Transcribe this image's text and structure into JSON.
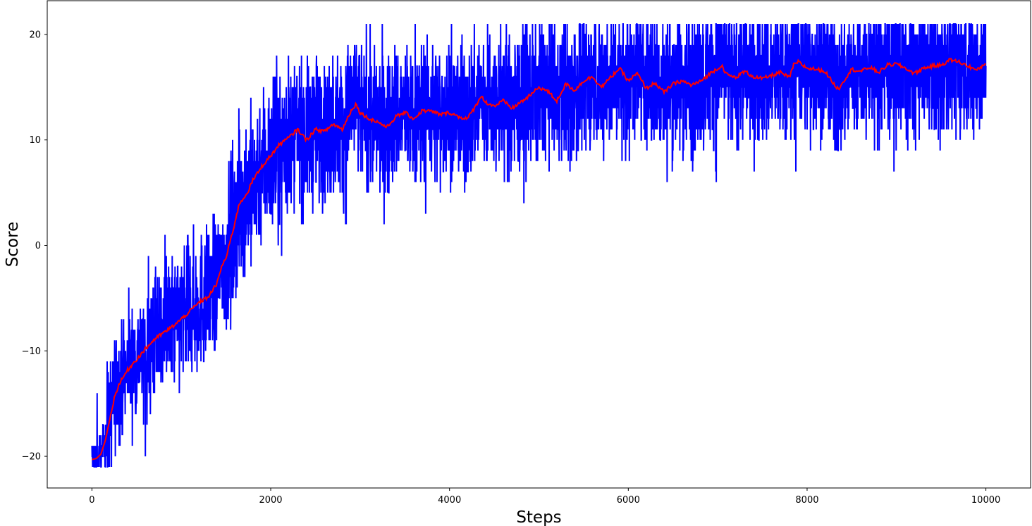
{
  "chart_data": {
    "type": "line",
    "xlabel": "Steps",
    "ylabel": "Score",
    "xlim": [
      -500,
      10500
    ],
    "ylim": [
      -23,
      23.2
    ],
    "xticks": [
      0,
      2000,
      4000,
      6000,
      8000,
      10000
    ],
    "xtick_labels": [
      "0",
      "2000",
      "4000",
      "6000",
      "8000",
      "10000"
    ],
    "yticks": [
      -20,
      -10,
      0,
      10,
      20
    ],
    "ytick_labels": [
      "−20",
      "−10",
      "0",
      "10",
      "20"
    ],
    "grid": false,
    "series": [
      {
        "color": "#0000ff",
        "description": "per-episode score (noisy)",
        "trend_x": [
          0,
          100,
          200,
          300,
          400,
          600,
          800,
          1000,
          1200,
          1400,
          1500,
          1600,
          1700,
          1800,
          1900,
          2000,
          2200,
          2400,
          2600,
          2800,
          2950,
          3100,
          3300,
          3500,
          3700,
          4000,
          4200,
          4350,
          4500,
          4700,
          4900,
          5100,
          5300,
          5500,
          5700,
          5900,
          6100,
          6300,
          6500,
          6700,
          6900,
          7050,
          7200,
          7400,
          7600,
          7850,
          8100,
          8350,
          8600,
          8800,
          9000,
          9200,
          9400,
          9600,
          9800,
          10000
        ],
        "y_min_approx": -21,
        "y_max_approx": 21
      },
      {
        "color": "#ff0000",
        "description": "moving average",
        "x": [
          0,
          50,
          100,
          150,
          200,
          250,
          300,
          400,
          500,
          600,
          700,
          800,
          900,
          1000,
          1100,
          1200,
          1300,
          1400,
          1450,
          1500,
          1550,
          1600,
          1650,
          1700,
          1750,
          1800,
          1850,
          1900,
          1950,
          2000,
          2100,
          2200,
          2300,
          2400,
          2500,
          2600,
          2700,
          2800,
          2900,
          2950,
          3000,
          3100,
          3200,
          3300,
          3400,
          3500,
          3600,
          3700,
          3800,
          3900,
          4000,
          4100,
          4200,
          4300,
          4350,
          4400,
          4500,
          4600,
          4700,
          4800,
          4900,
          5000,
          5100,
          5200,
          5300,
          5400,
          5500,
          5600,
          5700,
          5800,
          5900,
          6000,
          6100,
          6200,
          6300,
          6400,
          6500,
          6600,
          6700,
          6800,
          6900,
          7000,
          7050,
          7100,
          7200,
          7300,
          7400,
          7500,
          7600,
          7700,
          7800,
          7850,
          7900,
          8000,
          8100,
          8200,
          8300,
          8350,
          8400,
          8500,
          8600,
          8700,
          8800,
          8900,
          9000,
          9100,
          9200,
          9300,
          9400,
          9500,
          9600,
          9700,
          9800,
          9900,
          10000
        ],
        "y": [
          -20.3,
          -20.2,
          -19.8,
          -18.5,
          -16.5,
          -14.5,
          -13.2,
          -11.8,
          -10.8,
          -9.8,
          -8.9,
          -8.3,
          -7.7,
          -7.0,
          -6.2,
          -5.4,
          -4.9,
          -3.6,
          -2.0,
          -1.2,
          0.5,
          2.2,
          4.0,
          4.5,
          5.2,
          6.2,
          6.8,
          7.5,
          8.0,
          8.5,
          9.6,
          10.2,
          11.0,
          10.0,
          11.0,
          10.8,
          11.5,
          11.0,
          12.8,
          13.4,
          12.6,
          12.0,
          11.7,
          11.2,
          12.2,
          12.6,
          12.0,
          12.8,
          12.7,
          12.4,
          12.6,
          12.2,
          12.0,
          13.3,
          14.2,
          13.6,
          13.2,
          13.7,
          13.0,
          13.6,
          14.2,
          15.0,
          14.6,
          13.7,
          15.3,
          14.7,
          15.6,
          16.0,
          15.0,
          15.9,
          16.8,
          15.6,
          16.3,
          14.9,
          15.4,
          14.5,
          15.3,
          15.6,
          15.2,
          15.5,
          16.2,
          16.8,
          17.0,
          16.2,
          15.9,
          16.5,
          16.0,
          15.8,
          16.1,
          16.4,
          15.9,
          17.1,
          17.4,
          16.8,
          16.7,
          16.5,
          15.3,
          14.8,
          15.5,
          16.7,
          16.5,
          16.9,
          16.4,
          17.1,
          17.2,
          16.8,
          16.3,
          16.8,
          17.0,
          17.1,
          17.6,
          17.4,
          17.0,
          16.6,
          17.3
        ]
      }
    ]
  }
}
